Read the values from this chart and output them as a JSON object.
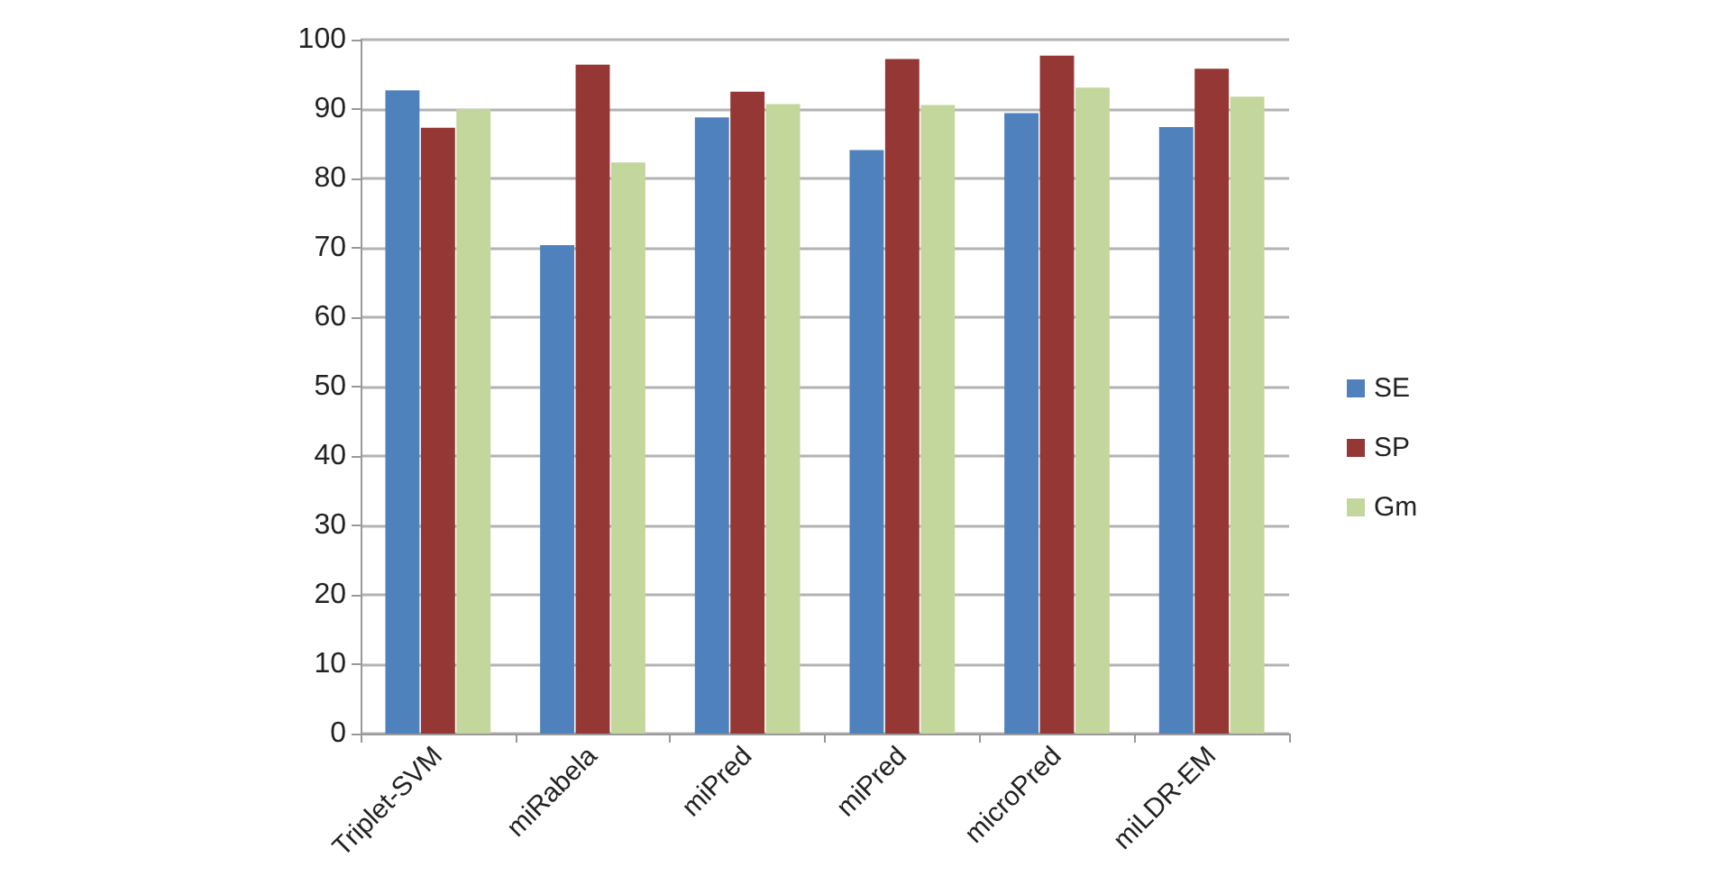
{
  "chart_data": {
    "type": "bar",
    "categories": [
      "Triplet-SVM",
      "miRabela",
      "miPred",
      "miPred",
      "microPred",
      "miLDR-EM"
    ],
    "series": [
      {
        "name": "SE",
        "color": "#4f81bd",
        "values": [
          92.7,
          70.4,
          88.8,
          84.1,
          89.4,
          87.4
        ]
      },
      {
        "name": "SP",
        "color": "#953735",
        "values": [
          87.3,
          96.4,
          92.5,
          97.2,
          97.7,
          95.8
        ]
      },
      {
        "name": "Gm",
        "color": "#c3d69b",
        "values": [
          90.0,
          82.3,
          90.7,
          90.6,
          93.1,
          91.8
        ]
      }
    ],
    "ylim": [
      0,
      100
    ],
    "yticks": [
      0,
      10,
      20,
      30,
      40,
      50,
      60,
      70,
      80,
      90,
      100
    ],
    "grid": "y",
    "legend": "right"
  }
}
